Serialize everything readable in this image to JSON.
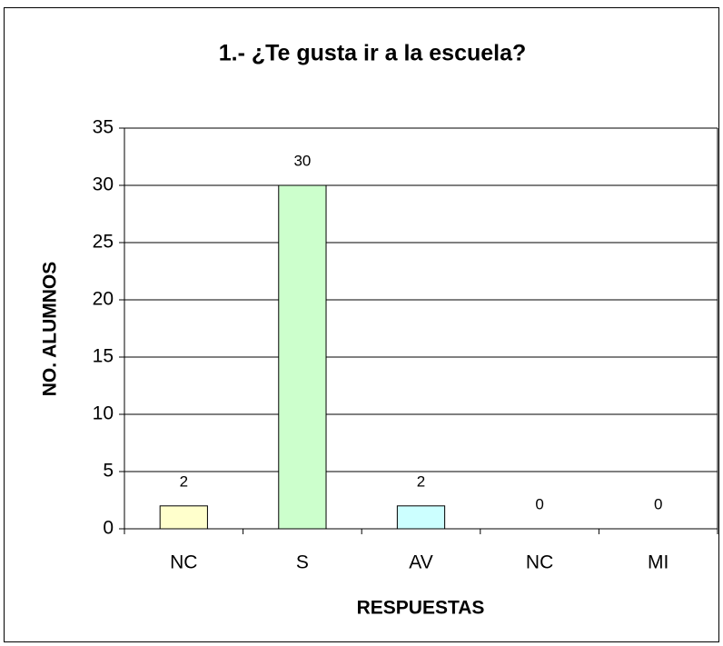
{
  "chart_data": {
    "type": "bar",
    "title": "1.- ¿Te gusta ir a la escuela?",
    "x_label": "RESPUESTAS",
    "y_label": "NO. ALUMNOS",
    "categories": [
      "NC",
      "S",
      "AV",
      "NC",
      "MI"
    ],
    "values": [
      2,
      30,
      2,
      0,
      0
    ],
    "colors": [
      "#ffffcc",
      "#ccffcc",
      "#ccffff",
      "#ccccff",
      "#ffccff"
    ],
    "ylim": [
      0,
      35
    ],
    "yticks": [
      0,
      5,
      10,
      15,
      20,
      25,
      30,
      35
    ],
    "grid": true
  }
}
